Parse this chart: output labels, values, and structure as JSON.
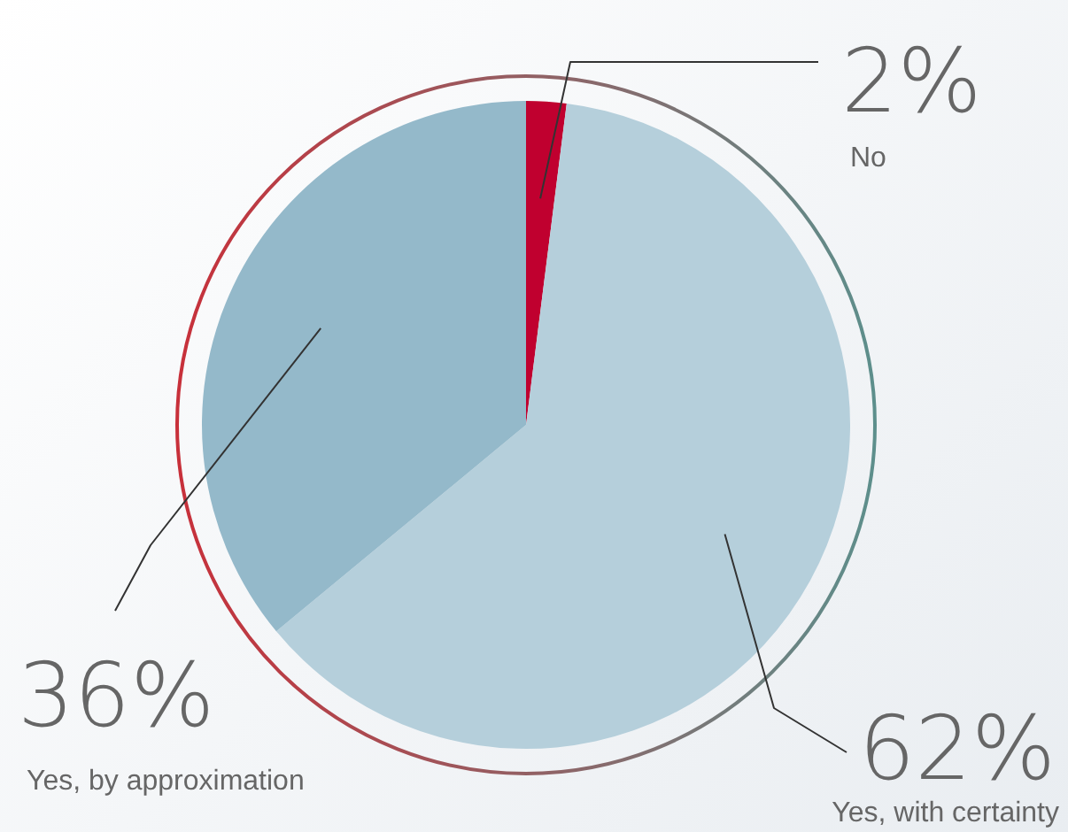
{
  "chart_data": {
    "type": "pie",
    "categories": [
      "No",
      "Yes, with certainty",
      "Yes, by approximation"
    ],
    "values": [
      2,
      62,
      36
    ],
    "colors": [
      "#c0002f",
      "#b5cfdb",
      "#94b9ca"
    ],
    "value_labels": [
      "2%",
      "62%",
      "36%"
    ],
    "legend": false
  }
}
